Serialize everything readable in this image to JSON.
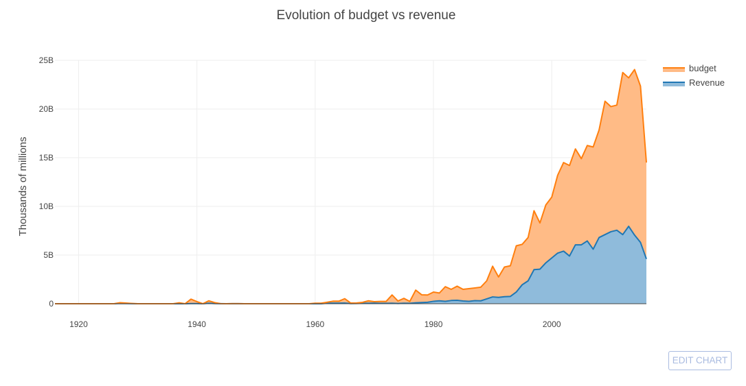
{
  "toolbar": {
    "edit_chart_label": "EDIT CHART"
  },
  "chart_data": {
    "type": "area",
    "stacked": true,
    "title": "Evolution of budget vs revenue",
    "xlabel": "",
    "ylabel": "Thousands of millions",
    "xlim": [
      1916,
      2016
    ],
    "ylim": [
      0,
      25000000000
    ],
    "x_ticks": [
      1920,
      1940,
      1960,
      1980,
      2000
    ],
    "y_ticks": [
      0,
      5000000000,
      10000000000,
      15000000000,
      20000000000,
      25000000000
    ],
    "y_tick_labels": [
      "0",
      "5B",
      "10B",
      "15B",
      "20B",
      "25B"
    ],
    "grid": true,
    "legend_position": "top-right",
    "x": [
      1916,
      1917,
      1918,
      1919,
      1920,
      1921,
      1922,
      1923,
      1924,
      1925,
      1926,
      1927,
      1928,
      1929,
      1930,
      1931,
      1932,
      1933,
      1934,
      1935,
      1936,
      1937,
      1938,
      1939,
      1940,
      1941,
      1942,
      1943,
      1944,
      1945,
      1946,
      1947,
      1948,
      1949,
      1950,
      1951,
      1952,
      1953,
      1954,
      1955,
      1956,
      1957,
      1958,
      1959,
      1960,
      1961,
      1962,
      1963,
      1964,
      1965,
      1966,
      1967,
      1968,
      1969,
      1970,
      1971,
      1972,
      1973,
      1974,
      1975,
      1976,
      1977,
      1978,
      1979,
      1980,
      1981,
      1982,
      1983,
      1984,
      1985,
      1986,
      1987,
      1988,
      1989,
      1990,
      1991,
      1992,
      1993,
      1994,
      1995,
      1996,
      1997,
      1998,
      1999,
      2000,
      2001,
      2002,
      2003,
      2004,
      2005,
      2006,
      2007,
      2008,
      2009,
      2010,
      2011,
      2012,
      2013,
      2014,
      2015,
      2016
    ],
    "series": [
      {
        "name": "Revenue",
        "color": "#1f77b4",
        "fill": "#8fbbdb",
        "values": [
          0,
          0,
          0,
          0,
          0,
          0,
          0,
          0,
          0,
          0,
          0,
          0.03,
          0.02,
          0.01,
          0,
          0,
          0,
          0,
          0,
          0,
          0,
          0,
          0,
          0.02,
          0.02,
          0,
          0.05,
          0.02,
          0.01,
          0,
          0.01,
          0.01,
          0,
          0,
          0,
          0,
          0,
          0,
          0,
          0,
          0,
          0,
          0,
          0,
          0,
          0,
          0.05,
          0.06,
          0.06,
          0.07,
          0.02,
          0.03,
          0.04,
          0.05,
          0.06,
          0.04,
          0.04,
          0.05,
          0.03,
          0.05,
          0.04,
          0.1,
          0.12,
          0.15,
          0.25,
          0.3,
          0.25,
          0.33,
          0.35,
          0.28,
          0.25,
          0.32,
          0.3,
          0.5,
          0.7,
          0.65,
          0.72,
          0.75,
          1.2,
          1.95,
          2.35,
          3.5,
          3.55,
          4.2,
          4.7,
          5.2,
          5.4,
          4.9,
          6.05,
          6.05,
          6.45,
          5.6,
          6.8,
          7.1,
          7.4,
          7.55,
          7.1,
          7.95,
          7.05,
          6.3,
          4.6
        ]
      },
      {
        "name": "budget",
        "color": "#ff7f0e",
        "fill": "#ffbb86",
        "values": [
          0,
          0,
          0,
          0,
          0,
          0,
          0,
          0,
          0,
          0,
          0,
          0.08,
          0.05,
          0.02,
          0,
          0,
          0,
          0,
          0,
          0,
          0,
          0.1,
          0,
          0.45,
          0.2,
          0,
          0.25,
          0.1,
          0,
          0,
          0,
          0,
          0,
          0,
          0,
          0,
          0,
          0,
          0,
          0,
          0,
          0,
          0,
          0,
          0.05,
          0.05,
          0.1,
          0.2,
          0.2,
          0.45,
          0.05,
          0.05,
          0.1,
          0.25,
          0.15,
          0.2,
          0.2,
          0.85,
          0.25,
          0.5,
          0.2,
          1.3,
          0.8,
          0.75,
          0.95,
          0.8,
          1.5,
          1.15,
          1.45,
          1.2,
          1.3,
          1.3,
          1.4,
          1.85,
          3.15,
          2.1,
          3.05,
          3.15,
          4.75,
          4.15,
          4.45,
          6.05,
          4.75,
          5.95,
          6.25,
          8.0,
          9.1,
          9.3,
          9.85,
          8.85,
          9.8,
          10.5,
          11.05,
          13.7,
          12.85,
          12.85,
          16.65,
          15.25,
          17.0,
          16.05,
          9.9
        ]
      }
    ]
  }
}
